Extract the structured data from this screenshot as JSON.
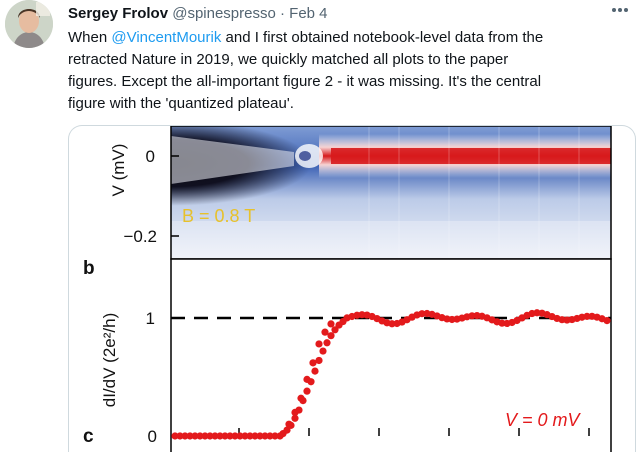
{
  "tweet": {
    "author_name": "Sergey Frolov",
    "author_handle": "@spinespresso",
    "separator": "·",
    "date": "Feb 4",
    "more_icon": "more-icon",
    "text_line1_prefix": "When ",
    "mention": "@VincentMourik",
    "text_line1_suffix": " and I first obtained notebook-level data from the",
    "text_line2": "retracted Nature in 2019, we quickly matched all plots to the paper",
    "text_line3": "figures. Except the all-important figure 2 - it was missing. It's the central",
    "text_line4": "figure with the 'quantized plateau'."
  },
  "figure": {
    "panel_top": {
      "ylabel": "V (mV)",
      "tick_zero": "0",
      "tick_neg": "−0.2",
      "field_label": "B = 0.8 T"
    },
    "panel_b": {
      "panel_letter": "b",
      "ylabel": "dI/dV (2e²/h)",
      "tick_one": "1",
      "tick_zero": "0",
      "trace_label": "V = 0 mV"
    },
    "panel_c_letter": "c",
    "colors": {
      "marker": "#e31a1c",
      "dashed_line": "#000000",
      "label_yellow": "#e7c12b",
      "colormap_high": "#d7191c",
      "colormap_low": "#2c5aa0"
    }
  }
}
